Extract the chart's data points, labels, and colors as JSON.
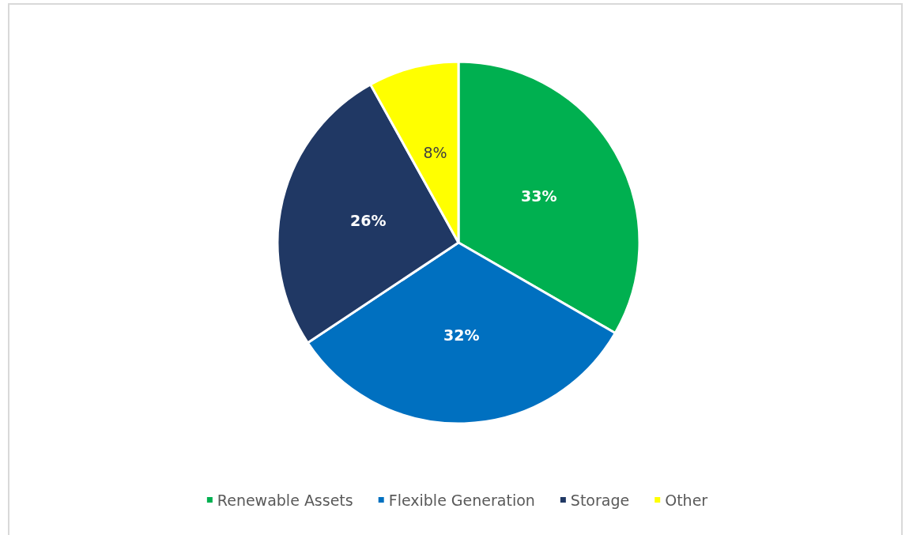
{
  "chart_data": {
    "type": "pie",
    "categories": [
      "Renewable Assets",
      "Flexible Generation",
      "Storage",
      "Other"
    ],
    "values": [
      33,
      32,
      26,
      8
    ],
    "colors": [
      "#00b050",
      "#0070c0",
      "#203864",
      "#ffff00"
    ],
    "value_labels": [
      "33%",
      "32%",
      "26%",
      "8%"
    ],
    "legend": "bottom"
  }
}
